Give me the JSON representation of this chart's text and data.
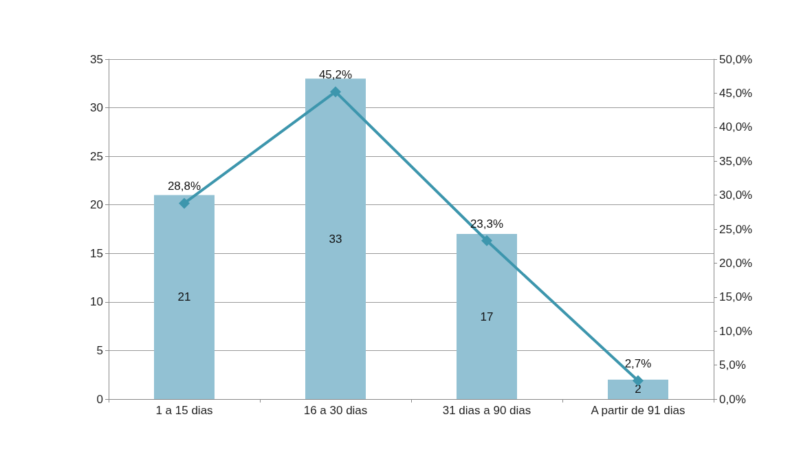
{
  "chart_data": {
    "type": "bar",
    "categories": [
      "1 a 15 dias",
      "16 a 30 dias",
      "31 dias a 90 dias",
      "A partir de 91 dias"
    ],
    "series": [
      {
        "color": "#92c1d3",
        "values": [
          21,
          33,
          17,
          2
        ],
        "value_labels": [
          "21",
          "33",
          "17",
          "2"
        ]
      },
      {
        "type": "line",
        "axis": "y2",
        "color": "#3d96ad",
        "values": [
          28.8,
          45.2,
          23.3,
          2.7
        ],
        "value_labels": [
          "28,8%",
          "45,2%",
          "23,3%",
          "2,7%"
        ]
      }
    ],
    "ylim": [
      0,
      35
    ],
    "yticks": [
      0,
      5,
      10,
      15,
      20,
      25,
      30,
      35
    ],
    "y2lim": [
      0,
      50
    ],
    "y2ticks": [
      {
        "value": 0,
        "label": "0,0%"
      },
      {
        "value": 5,
        "label": "5,0%"
      },
      {
        "value": 10,
        "label": "10,0%"
      },
      {
        "value": 15,
        "label": "15,0%"
      },
      {
        "value": 20,
        "label": "20,0%"
      },
      {
        "value": 25,
        "label": "25,0%"
      },
      {
        "value": 30,
        "label": "30,0%"
      },
      {
        "value": 35,
        "label": "35,0%"
      },
      {
        "value": 40,
        "label": "40,0%"
      },
      {
        "value": 45,
        "label": "45,0%"
      },
      {
        "value": 50,
        "label": "50,0%"
      }
    ],
    "grid": "y",
    "marker": "diamond",
    "line_style": "solid"
  }
}
